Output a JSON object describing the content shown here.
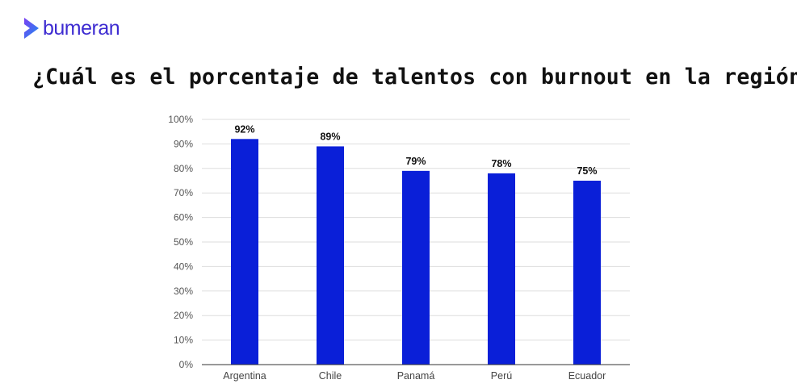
{
  "brand": {
    "name": "bumeran",
    "text_color": "#3d2bd1",
    "mark_colors": [
      "#7b3ff2",
      "#1c8ef0"
    ]
  },
  "chart_data": {
    "type": "bar",
    "title": "¿Cuál es el porcentaje de talentos con burnout en la región?",
    "xlabel": "",
    "ylabel": "",
    "categories": [
      "Argentina",
      "Chile",
      "Panamá",
      "Perú",
      "Ecuador"
    ],
    "values": [
      92,
      89,
      79,
      78,
      75
    ],
    "data_labels": [
      "92%",
      "89%",
      "79%",
      "78%",
      "75%"
    ],
    "ylim": [
      0,
      100
    ],
    "y_ticks": [
      "0%",
      "10%",
      "20%",
      "30%",
      "40%",
      "50%",
      "60%",
      "70%",
      "80%",
      "90%",
      "100%"
    ],
    "grid": true,
    "legend": "none",
    "bar_color": "#0a1fd8"
  }
}
